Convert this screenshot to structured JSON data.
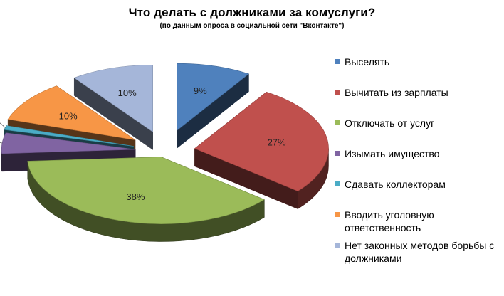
{
  "chart_data": {
    "type": "pie",
    "three_d": true,
    "exploded": true,
    "title": "Что делать с должниками за комуслуги?",
    "subtitle": "(по данным опроса в социальной сети \"Вконтакте\")",
    "legend_position": "right",
    "slices": [
      {
        "label": "Выселять",
        "value": 9,
        "value_label": "9%",
        "color": "#4f81bd"
      },
      {
        "label": "Вычитать из зарплаты",
        "value": 27,
        "value_label": "27%",
        "color": "#c0504d"
      },
      {
        "label": "Отключать от услуг",
        "value": 38,
        "value_label": "38%",
        "color": "#9bbb59"
      },
      {
        "label": "Изымать имущество",
        "value": 5,
        "value_label": "5%",
        "color": "#8064a2"
      },
      {
        "label": "Сдавать коллекторам",
        "value": 1,
        "value_label": "1%",
        "color": "#4bacc6"
      },
      {
        "label": "Вводить уголовную ответственность",
        "value": 10,
        "value_label": "10%",
        "color": "#f79646"
      },
      {
        "label": "Нет законных методов борьбы с должниками",
        "value": 10,
        "value_label": "10%",
        "color": "#a5b6d9"
      }
    ]
  }
}
